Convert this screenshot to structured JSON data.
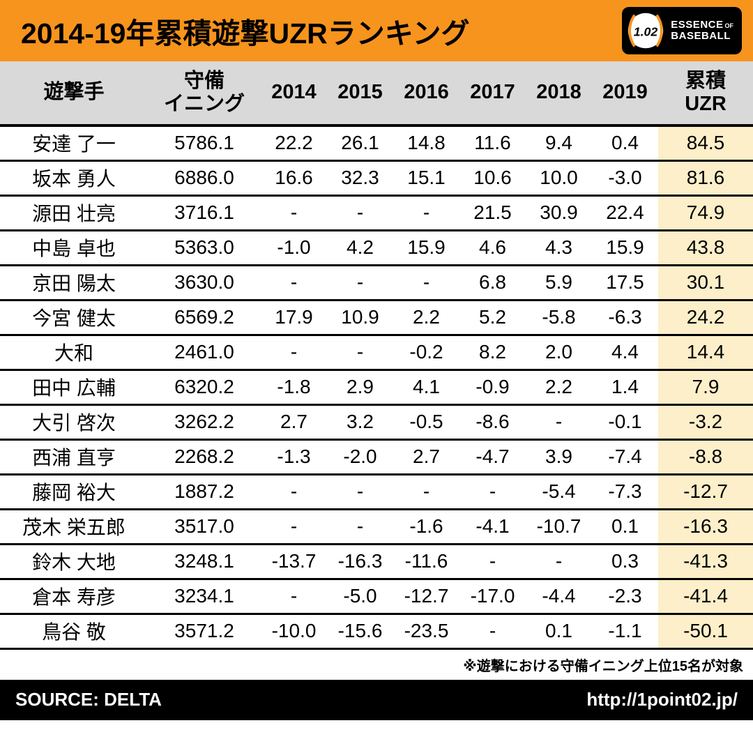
{
  "colors": {
    "accent": "#F7941D",
    "header_gray": "#D9D9D9",
    "highlight": "#FCEFC9",
    "bar_black": "#000000"
  },
  "header": {
    "title": "2014-19年累積遊撃UZRランキング",
    "logo": {
      "number": "1.02",
      "essence": "ESSENCE",
      "of": "OF",
      "baseball": "BASEBALL"
    }
  },
  "chart_data": {
    "type": "table",
    "title": "2014-19年累積遊撃UZRランキング",
    "columns": [
      "遊撃手",
      "守備\nイニング",
      "2014",
      "2015",
      "2016",
      "2017",
      "2018",
      "2019",
      "累積\nUZR"
    ],
    "rows": [
      {
        "name": "安達 了一",
        "innings": "5786.1",
        "values": [
          "22.2",
          "26.1",
          "14.8",
          "11.6",
          "9.4",
          "0.4"
        ],
        "total": "84.5"
      },
      {
        "name": "坂本 勇人",
        "innings": "6886.0",
        "values": [
          "16.6",
          "32.3",
          "15.1",
          "10.6",
          "10.0",
          "-3.0"
        ],
        "total": "81.6"
      },
      {
        "name": "源田 壮亮",
        "innings": "3716.1",
        "values": [
          "-",
          "-",
          "-",
          "21.5",
          "30.9",
          "22.4"
        ],
        "total": "74.9"
      },
      {
        "name": "中島 卓也",
        "innings": "5363.0",
        "values": [
          "-1.0",
          "4.2",
          "15.9",
          "4.6",
          "4.3",
          "15.9"
        ],
        "total": "43.8"
      },
      {
        "name": "京田 陽太",
        "innings": "3630.0",
        "values": [
          "-",
          "-",
          "-",
          "6.8",
          "5.9",
          "17.5"
        ],
        "total": "30.1"
      },
      {
        "name": "今宮 健太",
        "innings": "6569.2",
        "values": [
          "17.9",
          "10.9",
          "2.2",
          "5.2",
          "-5.8",
          "-6.3"
        ],
        "total": "24.2"
      },
      {
        "name": "大和",
        "innings": "2461.0",
        "values": [
          "-",
          "-",
          "-0.2",
          "8.2",
          "2.0",
          "4.4"
        ],
        "total": "14.4"
      },
      {
        "name": "田中 広輔",
        "innings": "6320.2",
        "values": [
          "-1.8",
          "2.9",
          "4.1",
          "-0.9",
          "2.2",
          "1.4"
        ],
        "total": "7.9"
      },
      {
        "name": "大引 啓次",
        "innings": "3262.2",
        "values": [
          "2.7",
          "3.2",
          "-0.5",
          "-8.6",
          "-",
          "-0.1"
        ],
        "total": "-3.2"
      },
      {
        "name": "西浦 直亨",
        "innings": "2268.2",
        "values": [
          "-1.3",
          "-2.0",
          "2.7",
          "-4.7",
          "3.9",
          "-7.4"
        ],
        "total": "-8.8"
      },
      {
        "name": "藤岡 裕大",
        "innings": "1887.2",
        "values": [
          "-",
          "-",
          "-",
          "-",
          "-5.4",
          "-7.3"
        ],
        "total": "-12.7"
      },
      {
        "name": "茂木 栄五郎",
        "innings": "3517.0",
        "values": [
          "-",
          "-",
          "-1.6",
          "-4.1",
          "-10.7",
          "0.1"
        ],
        "total": "-16.3"
      },
      {
        "name": "鈴木 大地",
        "innings": "3248.1",
        "values": [
          "-13.7",
          "-16.3",
          "-11.6",
          "-",
          "-",
          "0.3"
        ],
        "total": "-41.3"
      },
      {
        "name": "倉本 寿彦",
        "innings": "3234.1",
        "values": [
          "-",
          "-5.0",
          "-12.7",
          "-17.0",
          "-4.4",
          "-2.3"
        ],
        "total": "-41.4"
      },
      {
        "name": "鳥谷 敬",
        "innings": "3571.2",
        "values": [
          "-10.0",
          "-15.6",
          "-23.5",
          "-",
          "0.1",
          "-1.1"
        ],
        "total": "-50.1"
      }
    ]
  },
  "note": "※遊撃における守備イニング上位15名が対象",
  "footer": {
    "source": "SOURCE: DELTA",
    "url": "http://1point02.jp/"
  }
}
